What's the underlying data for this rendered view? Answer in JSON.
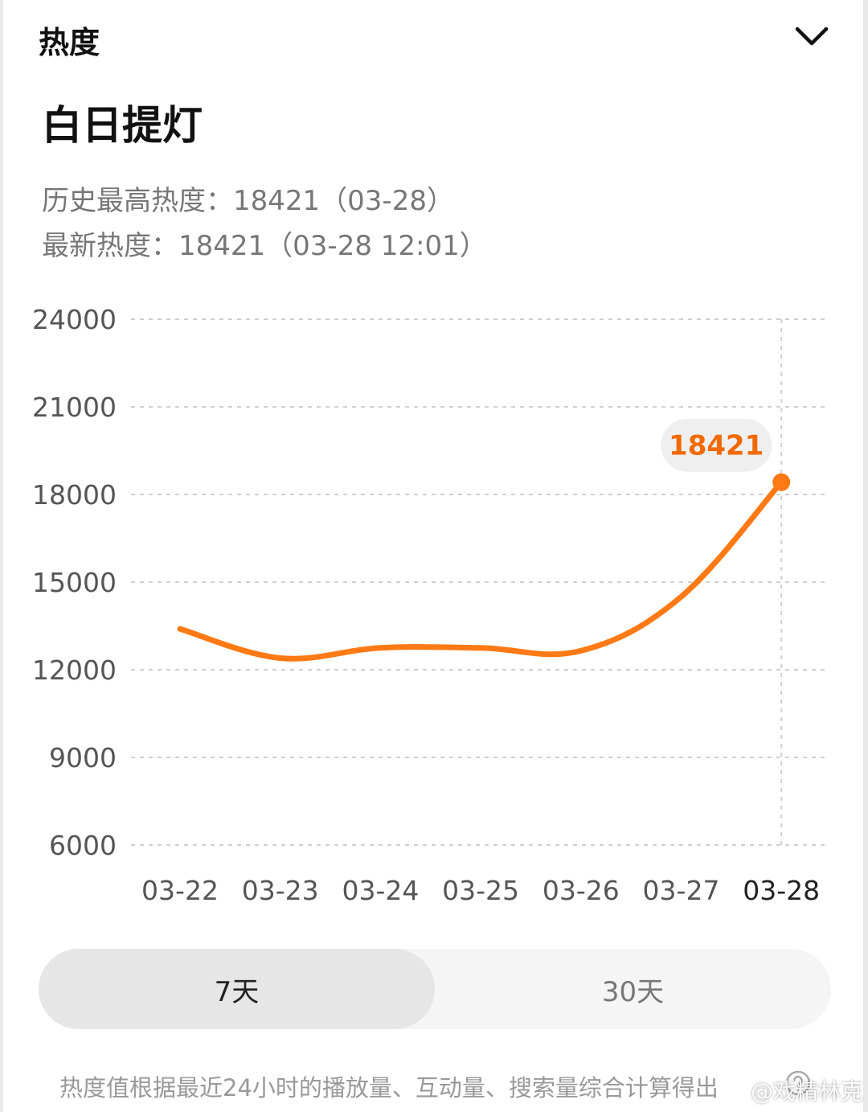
{
  "header": {
    "title": "热度",
    "collapse_icon": "chevron-down-icon"
  },
  "drama_title": "白日提灯",
  "stats": {
    "peak": "历史最高热度：18421（03-28）",
    "latest": "最新热度：18421（03-28 12:01）"
  },
  "chart_data": {
    "type": "line",
    "title": "",
    "xlabel": "",
    "ylabel": "",
    "x": [
      "03-22",
      "03-23",
      "03-24",
      "03-25",
      "03-26",
      "03-27",
      "03-28"
    ],
    "series": [
      {
        "values": [
          13400,
          12400,
          12750,
          12750,
          12650,
          14500,
          18421
        ]
      }
    ],
    "yticks": [
      6000,
      9000,
      12000,
      15000,
      18000,
      21000,
      24000
    ],
    "ylim": [
      6000,
      24000
    ],
    "grid": "horizontal dashed",
    "highlight": {
      "x": "03-28",
      "label": "18421"
    },
    "colors": {
      "line": "#ff7a14",
      "label_text": "#f06a00",
      "label_bg": "#efefef"
    }
  },
  "range_toggle": {
    "options": [
      "7天",
      "30天"
    ],
    "selected": "7天"
  },
  "footnote": "热度值根据最近24小时的播放量、互动量、搜索量综合计算得出",
  "watermark": "@戏精林克"
}
